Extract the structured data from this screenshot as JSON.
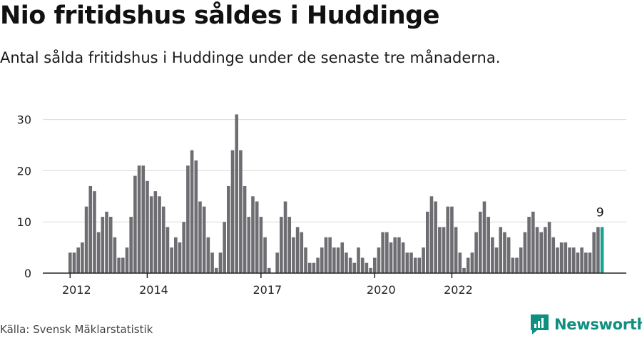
{
  "header": {
    "title": "Nio fritidshus såldes i Huddinge",
    "subtitle": "Antal sålda fritidshus i Huddinge under de senaste tre månaderna."
  },
  "footer": {
    "source": "Källa: Svensk Mäklarstatistik",
    "brand": "Newsworthy",
    "brand_icon": "newsworthy-logo-icon"
  },
  "colors": {
    "bar": "#6e6d72",
    "highlight": "#17a394",
    "grid": "#d9d9d9",
    "axis": "#222222",
    "brand": "#0e8f80"
  },
  "chart_data": {
    "type": "bar",
    "title": "",
    "xlabel": "",
    "ylabel": "",
    "ylim": [
      0,
      32
    ],
    "yticks": [
      0,
      10,
      20,
      30
    ],
    "grid": true,
    "xtick_labels": [
      "2012",
      "2014",
      "2017",
      "2020",
      "2022"
    ],
    "xtick_positions": [
      0,
      19,
      47,
      75,
      94
    ],
    "values": [
      4,
      4,
      5,
      6,
      13,
      17,
      16,
      8,
      11,
      12,
      11,
      7,
      3,
      3,
      5,
      11,
      19,
      21,
      21,
      18,
      15,
      16,
      15,
      13,
      9,
      5,
      7,
      6,
      10,
      21,
      24,
      22,
      14,
      13,
      7,
      4,
      1,
      4,
      10,
      17,
      24,
      31,
      24,
      17,
      11,
      15,
      14,
      11,
      7,
      1,
      0,
      4,
      11,
      14,
      11,
      7,
      9,
      8,
      5,
      2,
      2,
      3,
      5,
      7,
      7,
      5,
      5,
      6,
      4,
      3,
      2,
      5,
      3,
      2,
      1,
      3,
      5,
      8,
      8,
      6,
      7,
      7,
      6,
      4,
      4,
      3,
      3,
      5,
      12,
      15,
      14,
      9,
      9,
      13,
      13,
      9,
      4,
      1,
      3,
      4,
      8,
      12,
      14,
      11,
      7,
      5,
      9,
      8,
      7,
      3,
      3,
      5,
      8,
      11,
      12,
      9,
      8,
      9,
      10,
      7,
      5,
      6,
      6,
      5,
      5,
      4,
      5,
      4,
      4,
      8,
      9,
      9
    ],
    "highlight_index": 131,
    "highlight_label": "9"
  }
}
